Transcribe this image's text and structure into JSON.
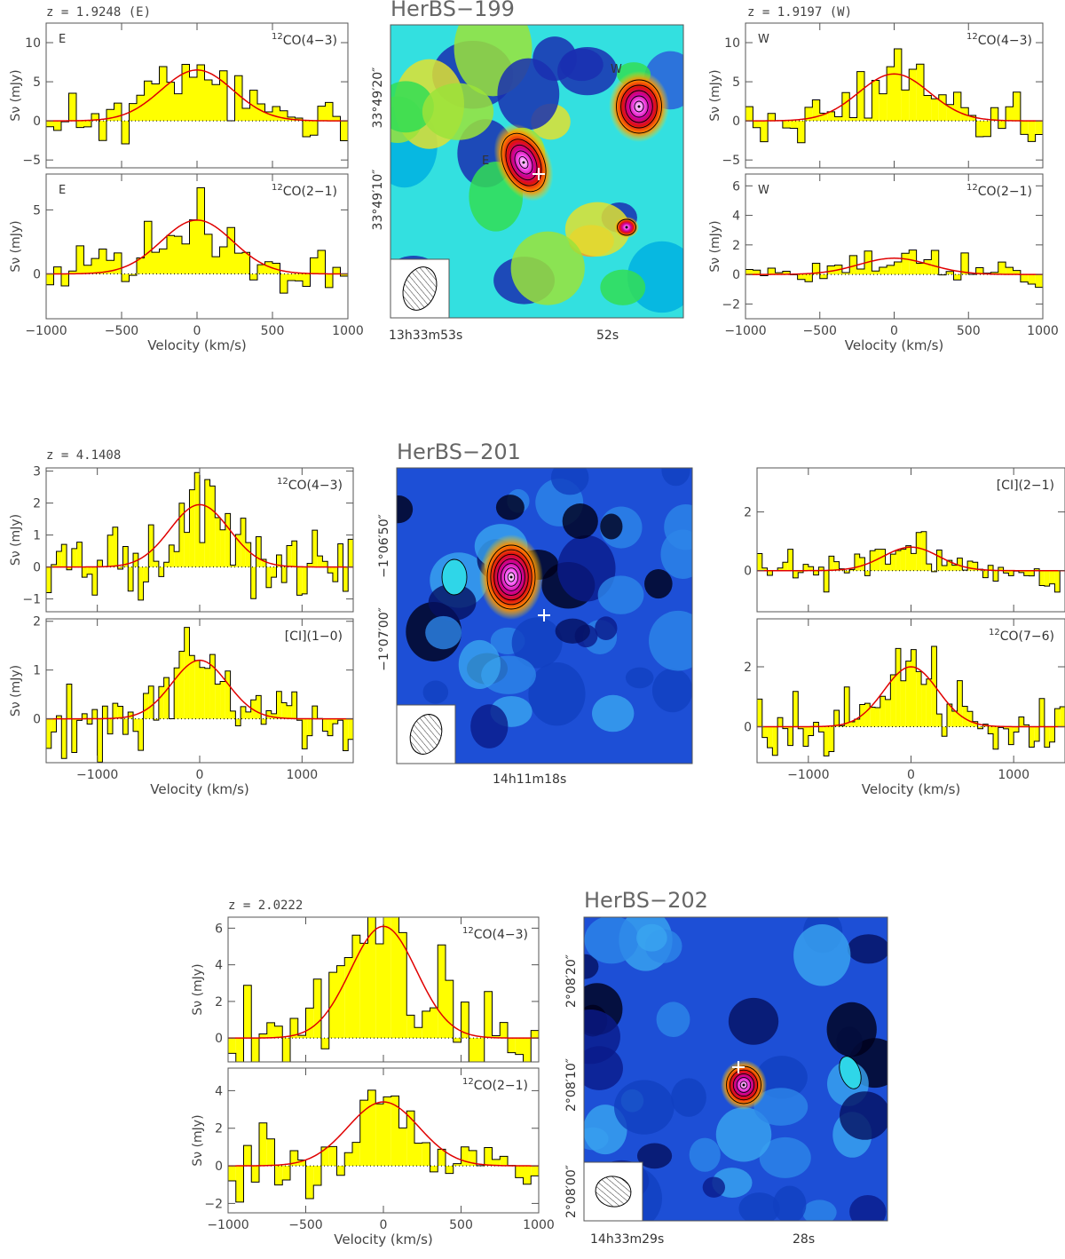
{
  "figure": {
    "rows": [
      {
        "source": "HerBS-199",
        "left": {
          "z_label": "z = 1.9248 (E)",
          "panels": [
            {
              "line": "12CO(4-3)",
              "letter": "E",
              "ylabel": "Sν (mJy)",
              "yticks": [
                "−5",
                "0",
                "5",
                "10"
              ],
              "ylim": [
                -6,
                12.5
              ],
              "gauss": {
                "amp": 6.5,
                "mu": 0,
                "fwhm": 560
              },
              "seed": 11
            },
            {
              "line": "12CO(2-1)",
              "letter": "E",
              "ylabel": "Sν (mJy)",
              "yticks": [
                "0",
                "5"
              ],
              "ylim": [
                -3.5,
                7.8
              ],
              "gauss": {
                "amp": 4.2,
                "mu": 0,
                "fwhm": 560
              },
              "seed": 12
            }
          ],
          "xlim": [
            -1000,
            1000
          ],
          "xticks": [
            "−1000",
            "−500",
            "0",
            "500",
            "1000"
          ],
          "xlabel": "Velocity (km/s)"
        },
        "map": {
          "title": "HerBS−199",
          "colormap": "rainbow",
          "labels": [
            "E",
            "W"
          ],
          "ra_label": "13h33m53s",
          "ra_label2": "52s",
          "dec_labels": [
            "33°49′20″",
            "33°49′10″"
          ]
        },
        "right": {
          "z_label": "z = 1.9197 (W)",
          "panels": [
            {
              "line": "12CO(4-3)",
              "letter": "W",
              "ylabel": "Sν (mJy)",
              "yticks": [
                "−5",
                "0",
                "5",
                "10"
              ],
              "ylim": [
                -6,
                12.5
              ],
              "gauss": {
                "amp": 6.0,
                "mu": 0,
                "fwhm": 560
              },
              "seed": 13
            },
            {
              "line": "12CO(2-1)",
              "letter": "W",
              "ylabel": "Sν (mJy)",
              "yticks": [
                "−2",
                "0",
                "2",
                "4",
                "6"
              ],
              "ylim": [
                -3,
                6.8
              ],
              "gauss": {
                "amp": 1.1,
                "mu": 0,
                "fwhm": 560
              },
              "seed": 14
            }
          ],
          "xlim": [
            -1000,
            1000
          ],
          "xticks": [
            "−1000",
            "−500",
            "0",
            "500",
            "1000"
          ],
          "xlabel": "Velocity (km/s)"
        }
      },
      {
        "source": "HerBS-201",
        "left": {
          "z_label": "z = 4.1408",
          "panels": [
            {
              "line": "12CO(4-3)",
              "letter": "",
              "ylabel": "Sν (mJy)",
              "yticks": [
                "−1",
                "0",
                "1",
                "2",
                "3"
              ],
              "ylim": [
                -1.4,
                3.1
              ],
              "gauss": {
                "amp": 1.95,
                "mu": 0,
                "fwhm": 680
              },
              "seed": 21
            },
            {
              "line": "[CI](1-0)",
              "letter": "",
              "ylabel": "Sν (mJy)",
              "yticks": [
                "0",
                "1",
                "2"
              ],
              "ylim": [
                -0.9,
                2.05
              ],
              "gauss": {
                "amp": 1.2,
                "mu": 0,
                "fwhm": 640
              },
              "seed": 22
            }
          ],
          "xlim": [
            -1500,
            1500
          ],
          "xticks": [
            "−1000",
            "0",
            "1000"
          ],
          "xlabel": "Velocity (km/s)"
        },
        "map": {
          "title": "HerBS−201",
          "colormap": "blue",
          "labels": [],
          "ra_label": "14h11m18s",
          "ra_label2": "",
          "dec_labels": [
            "−1°06′50″",
            "−1°07′00″"
          ]
        },
        "right": {
          "z_label": "",
          "panels": [
            {
              "line": "[CI](2-1)",
              "letter": "",
              "ylabel": "",
              "yticks": [
                "0",
                "2"
              ],
              "ylim": [
                -1.4,
                3.5
              ],
              "gauss": {
                "amp": 0.8,
                "mu": 0,
                "fwhm": 640
              },
              "seed": 23
            },
            {
              "line": "12CO(7-6)",
              "letter": "",
              "ylabel": "",
              "yticks": [
                "0",
                "2"
              ],
              "ylim": [
                -1.2,
                3.6
              ],
              "gauss": {
                "amp": 2.0,
                "mu": 0,
                "fwhm": 620
              },
              "seed": 24
            }
          ],
          "xlim": [
            -1500,
            1500
          ],
          "xticks": [
            "−1000",
            "0",
            "1000"
          ],
          "xlabel": "Velocity (km/s)"
        }
      },
      {
        "source": "HerBS-202",
        "left": {
          "z_label": "z = 2.0222",
          "panels": [
            {
              "line": "12CO(4-3)",
              "letter": "",
              "ylabel": "Sν (mJy)",
              "yticks": [
                "0",
                "2",
                "4",
                "6"
              ],
              "ylim": [
                -1.3,
                6.6
              ],
              "gauss": {
                "amp": 6.1,
                "mu": 0,
                "fwhm": 500
              },
              "seed": 31
            },
            {
              "line": "12CO(2-1)",
              "letter": "",
              "ylabel": "Sν (mJy)",
              "yticks": [
                "−2",
                "0",
                "2",
                "4"
              ],
              "ylim": [
                -2.5,
                5.2
              ],
              "gauss": {
                "amp": 3.4,
                "mu": 0,
                "fwhm": 540
              },
              "seed": 32
            }
          ],
          "xlim": [
            -1000,
            1000
          ],
          "xticks": [
            "−1000",
            "−500",
            "0",
            "500",
            "1000"
          ],
          "xlabel": "Velocity (km/s)"
        },
        "map": {
          "title": "HerBS−202",
          "colormap": "blue",
          "labels": [],
          "ra_label": "14h33m29s",
          "ra_label2": "28s",
          "dec_labels": [
            "2°08′20″",
            "2°08′10″",
            "2°08′00″"
          ]
        },
        "right": null
      }
    ]
  },
  "chart_data": {
    "type": "bar",
    "description_free": true,
    "xlabel": "Velocity (km/s)",
    "ylabel": "Sν (mJy)",
    "spectra": [
      {
        "source": "HerBS-199",
        "component": "E",
        "z": 1.9248,
        "line": "12CO(4-3)",
        "fit_peak_mJy": 6.5,
        "fit_center_kms": 0
      },
      {
        "source": "HerBS-199",
        "component": "E",
        "z": 1.9248,
        "line": "12CO(2-1)",
        "fit_peak_mJy": 4.2,
        "fit_center_kms": 0
      },
      {
        "source": "HerBS-199",
        "component": "W",
        "z": 1.9197,
        "line": "12CO(4-3)",
        "fit_peak_mJy": 6.0,
        "fit_center_kms": 0
      },
      {
        "source": "HerBS-199",
        "component": "W",
        "z": 1.9197,
        "line": "12CO(2-1)",
        "fit_peak_mJy": 1.1,
        "fit_center_kms": 0
      },
      {
        "source": "HerBS-201",
        "z": 4.1408,
        "line": "12CO(4-3)",
        "fit_peak_mJy": 1.95,
        "fit_center_kms": 0
      },
      {
        "source": "HerBS-201",
        "z": 4.1408,
        "line": "[CI](1-0)",
        "fit_peak_mJy": 1.2,
        "fit_center_kms": 0
      },
      {
        "source": "HerBS-201",
        "z": 4.1408,
        "line": "[CI](2-1)",
        "fit_peak_mJy": 0.8,
        "fit_center_kms": 0
      },
      {
        "source": "HerBS-201",
        "z": 4.1408,
        "line": "12CO(7-6)",
        "fit_peak_mJy": 2.0,
        "fit_center_kms": 0
      },
      {
        "source": "HerBS-202",
        "z": 2.0222,
        "line": "12CO(4-3)",
        "fit_peak_mJy": 6.1,
        "fit_center_kms": 0
      },
      {
        "source": "HerBS-202",
        "z": 2.0222,
        "line": "12CO(2-1)",
        "fit_peak_mJy": 3.4,
        "fit_center_kms": 0
      }
    ]
  },
  "colors": {
    "hist_fill": "#ffff00",
    "hist_edge": "#000000",
    "fit": "#e00000",
    "axis": "#555555"
  }
}
